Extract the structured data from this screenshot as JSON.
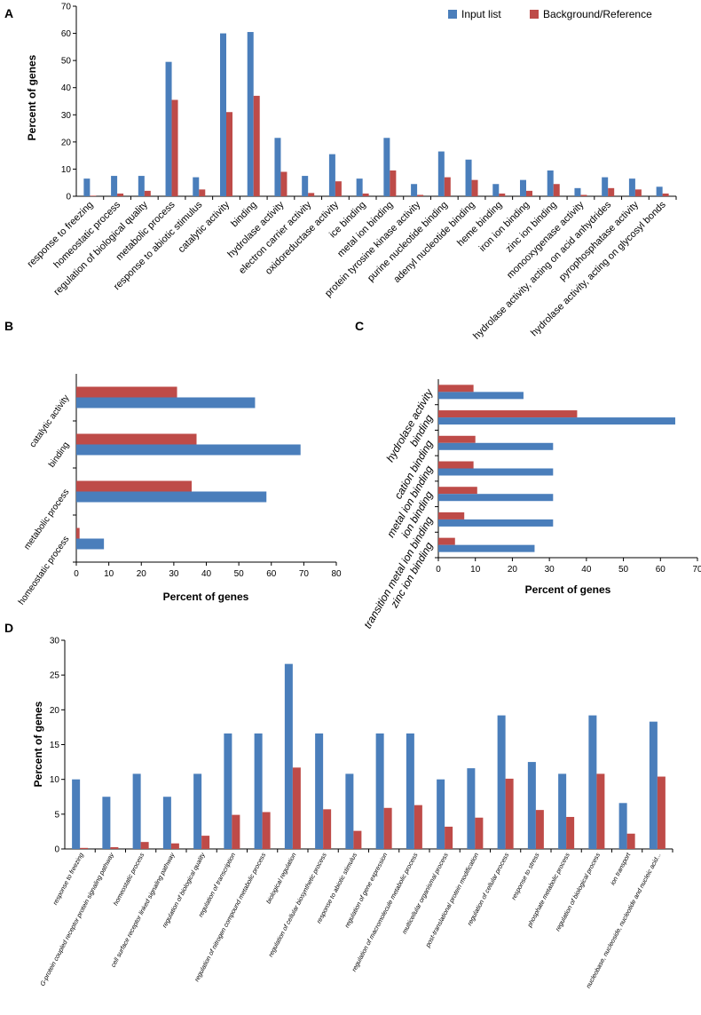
{
  "colors": {
    "input": "#4a7ebb",
    "reference": "#be4b48"
  },
  "legend": {
    "input": "Input list",
    "reference": "Background/Reference"
  },
  "chart_data": [
    {
      "panel": "A",
      "type": "bar",
      "orientation": "vertical",
      "ylabel": "Percent of genes",
      "xlabel": "",
      "ylim": [
        0,
        70
      ],
      "yticks": [
        0,
        10,
        20,
        30,
        40,
        50,
        60,
        70
      ],
      "legend_position": "top-right",
      "categories": [
        "response to freezing",
        "homeostatic process",
        "regulation of biological quality",
        "metabolic process",
        "response to abiotic stimulus",
        "catalytic activity",
        "binding",
        "hydrolase activity",
        "electron carrier activity",
        "oxidoreductase activity",
        "ice binding",
        "metal ion binding",
        "protein tyrosine kinase activity",
        "purine nucleotide binding",
        "adenyl nucleotide binding",
        "heme binding",
        "iron ion binding",
        "zinc ion binding",
        "monooxygenase activity",
        "hydrolase activity, acting on acid anhydrides",
        "pyrophosphatase activity",
        "hydrolase activity, acting on glycosyl bonds"
      ],
      "series": [
        {
          "name": "Input list",
          "values": [
            6.5,
            7.5,
            7.5,
            49.5,
            7,
            60,
            60.5,
            21.5,
            7.5,
            15.5,
            6.5,
            21.5,
            4.5,
            16.5,
            13.5,
            4.5,
            6,
            9.5,
            3,
            7,
            6.5,
            3.5
          ]
        },
        {
          "name": "Background/Reference",
          "values": [
            0.2,
            1,
            2,
            35.5,
            2.5,
            31,
            37,
            9,
            1.2,
            5.5,
            1,
            9.5,
            0.5,
            7,
            6,
            1,
            2,
            4.5,
            0.5,
            3,
            2.5,
            1
          ]
        }
      ]
    },
    {
      "panel": "B",
      "type": "bar",
      "orientation": "horizontal",
      "xlabel": "Percent of genes",
      "ylabel": "",
      "xlim": [
        0,
        80
      ],
      "xticks": [
        0,
        10,
        20,
        30,
        40,
        50,
        60,
        70,
        80
      ],
      "categories": [
        "catalytic activity",
        "binding",
        "metabolic process",
        "homeostatic process"
      ],
      "series": [
        {
          "name": "Input list",
          "values": [
            55,
            69,
            58.5,
            8.5
          ]
        },
        {
          "name": "Background/Reference",
          "values": [
            31,
            37,
            35.5,
            1
          ]
        }
      ]
    },
    {
      "panel": "C",
      "type": "bar",
      "orientation": "horizontal",
      "xlabel": "Percent of genes",
      "ylabel": "",
      "xlim": [
        0,
        70
      ],
      "xticks": [
        0,
        10,
        20,
        30,
        40,
        50,
        60,
        70
      ],
      "categories": [
        "hydrolase activity",
        "binding",
        "cation binding",
        "metal ion binding",
        "ion binding",
        "transition metal ion binding",
        "zinc ion binding"
      ],
      "series": [
        {
          "name": "Input list",
          "values": [
            23,
            64,
            31,
            31,
            31,
            31,
            26
          ]
        },
        {
          "name": "Background/Reference",
          "values": [
            9.5,
            37.5,
            10,
            9.5,
            10.5,
            7,
            4.5
          ]
        }
      ]
    },
    {
      "panel": "D",
      "type": "bar",
      "orientation": "vertical",
      "ylabel": "Percent of genes",
      "xlabel": "",
      "ylim": [
        0,
        30
      ],
      "yticks": [
        0,
        5,
        10,
        15,
        20,
        25,
        30
      ],
      "categories": [
        "response to freezing",
        "G-protein coupled receptor protein signaling pathway",
        "homeostatic process",
        "cell surface receptor linked signaling pathway",
        "regulation of biological quality",
        "regulation of transcription",
        "regulation of nitrogen compound metabolic process",
        "biological regulation",
        "regulation of cellular biosynthetic process",
        "response to abiotic stimulus",
        "regulation of gene expression",
        "regulation of macromolecule metabolic process",
        "multicellular organismal process",
        "post-translational protein modification",
        "regulation of cellular process",
        "response to stress",
        "phosphate metabolic process",
        "regulation of biological process",
        "ion transport",
        "nucleobase, nucleoside, nucleotide and nucleic acid..."
      ],
      "series": [
        {
          "name": "Input list",
          "values": [
            10,
            7.5,
            10.8,
            7.5,
            10.8,
            16.6,
            16.6,
            26.6,
            16.6,
            10.8,
            16.6,
            16.6,
            10,
            11.6,
            19.2,
            12.5,
            10.8,
            19.2,
            6.6,
            18.3
          ]
        },
        {
          "name": "Background/Reference",
          "values": [
            0.15,
            0.25,
            1,
            0.8,
            1.9,
            4.9,
            5.3,
            11.7,
            5.7,
            2.6,
            5.9,
            6.3,
            3.2,
            4.5,
            10.1,
            5.6,
            4.6,
            10.8,
            2.2,
            10.4
          ]
        }
      ]
    }
  ]
}
